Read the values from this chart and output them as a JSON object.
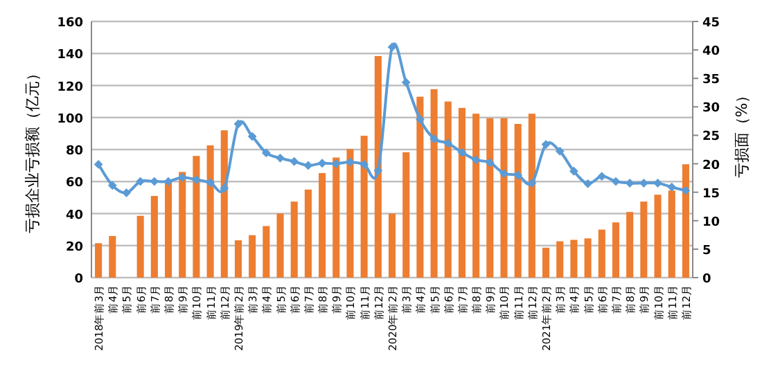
{
  "chart_data": {
    "type": "bar",
    "ylabel": "亏损企业亏损额（亿元）",
    "y2label": "亏损面（%）",
    "categories": [
      "2018年前3月",
      "前4月",
      "前5月",
      "前6月",
      "前7月",
      "前8月",
      "前9月",
      "前10月",
      "前11月",
      "前12月",
      "2019年前2月",
      "前3月",
      "前4月",
      "前5月",
      "前6月",
      "前7月",
      "前8月",
      "前9月",
      "前10月",
      "前11月",
      "前12月",
      "2020年前2月",
      "前3月",
      "前4月",
      "前5月",
      "前6月",
      "前7月",
      "前8月",
      "前9月",
      "前10月",
      "前11月",
      "前12月",
      "2021年前2月",
      "前3月",
      "前4月",
      "前5月",
      "前6月",
      "前7月",
      "前8月",
      "前9月",
      "前10月",
      "前11月",
      "前12月"
    ],
    "series": [
      {
        "color": "#ed7d31",
        "values": [
          21.5,
          26,
          null,
          38.6,
          51,
          60,
          66,
          76,
          82.6,
          92,
          23.3,
          26.5,
          32.2,
          40,
          47.5,
          55,
          65.3,
          75,
          80.3,
          88.6,
          138.4,
          40,
          78.3,
          113,
          117.7,
          110,
          106,
          102.4,
          99.6,
          99.6,
          96,
          102.4,
          18.7,
          22.7,
          23.6,
          24.5,
          30,
          34.5,
          41,
          47.5,
          51.8,
          54.4,
          70.8
        ]
      },
      {
        "type": "line",
        "axis": "y2",
        "color": "#5b9bd5",
        "marker": "diamond",
        "values": [
          19.9,
          16.2,
          14.9,
          16.9,
          16.9,
          16.9,
          17.6,
          17.2,
          16.7,
          15.7,
          27,
          24.8,
          21.9,
          21,
          20.4,
          19.7,
          20.1,
          20,
          20.3,
          19.9,
          18.8,
          40.5,
          34.3,
          27.8,
          24.4,
          23.6,
          22,
          20.7,
          20.2,
          18.3,
          18,
          16.6,
          23.4,
          22.2,
          18.7,
          16.5,
          17.8,
          16.9,
          16.6,
          16.6,
          16.6,
          15.9,
          15.3
        ]
      }
    ],
    "ylim": [
      0,
      160
    ],
    "yticks": [
      0,
      20,
      40,
      60,
      80,
      100,
      120,
      140,
      160
    ],
    "y2lim": [
      0,
      45
    ],
    "y2ticks": [
      0,
      5,
      10,
      15,
      20,
      25,
      30,
      35,
      40,
      45
    ],
    "grid": "y"
  }
}
